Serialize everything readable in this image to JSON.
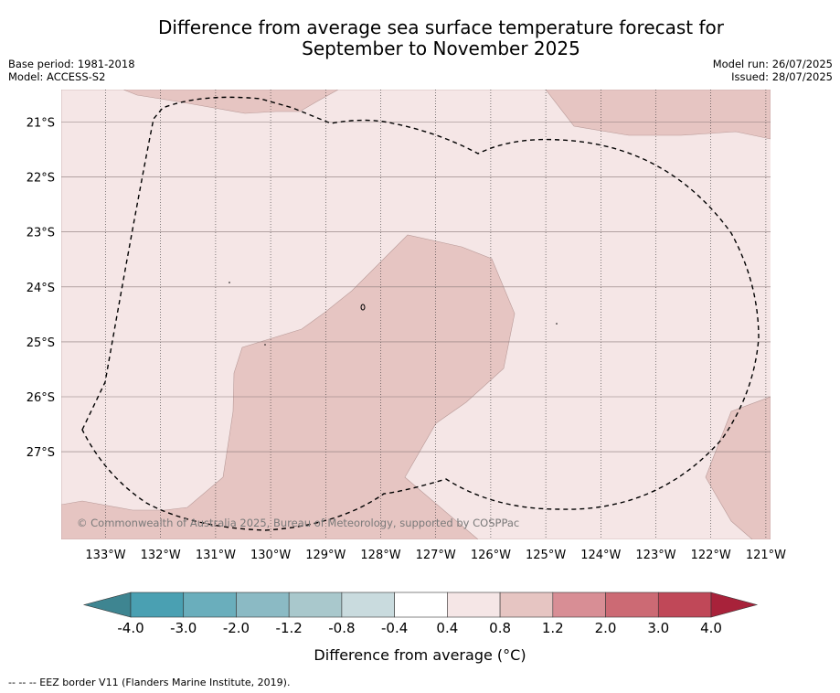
{
  "title": {
    "line1": "Difference from average sea surface temperature forecast for",
    "line2": "September to November 2025"
  },
  "meta_left": [
    "Base period: 1981-2018",
    "Model: ACCESS-S2"
  ],
  "meta_right": [
    "Model run: 26/07/2025",
    "Issued: 28/07/2025"
  ],
  "map": {
    "lon_ticks": [
      "133°W",
      "132°W",
      "131°W",
      "130°W",
      "129°W",
      "128°W",
      "127°W",
      "126°W",
      "125°W",
      "124°W",
      "123°W",
      "122°W",
      "121°W"
    ],
    "lat_ticks": [
      "21°S",
      "22°S",
      "23°S",
      "24°S",
      "25°S",
      "26°S",
      "27°S"
    ],
    "copyright": "© Commonwealth of Australia 2025, Bureau of Meteorology, supported by COSPPac",
    "category_colors": {
      "0.4 to 0.8": "#f5e6e6",
      "0.8 to 1.2": "#e6c5c2"
    }
  },
  "colorbar": {
    "labels": [
      "-4.0",
      "-3.0",
      "-2.0",
      "-1.2",
      "-0.8",
      "-0.4",
      "0.4",
      "0.8",
      "1.2",
      "2.0",
      "3.0",
      "4.0"
    ],
    "colors": [
      "#4aa0b2",
      "#6aaebc",
      "#8bbac4",
      "#a9c8cc",
      "#c9dbde",
      "#ffffff",
      "#f5e6e6",
      "#e6c5c2",
      "#d88e95",
      "#cc6a74",
      "#c04858"
    ],
    "under_color": "#3e8591",
    "over_color": "#a8223a",
    "label": "Difference from average (°C)"
  },
  "footnote": "--  --  -- EEZ border V11 (Flanders Marine Institute, 2019)."
}
